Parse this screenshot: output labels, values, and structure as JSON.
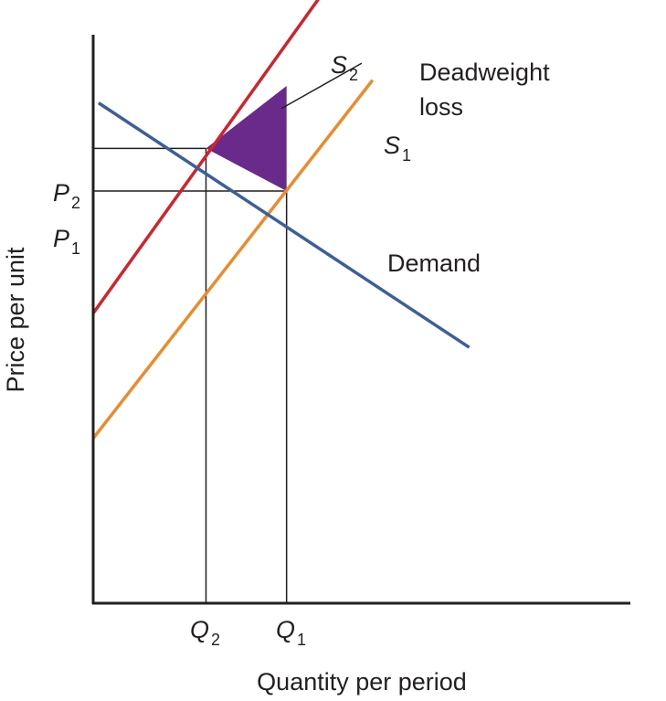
{
  "chart_data": {
    "type": "line",
    "xlabel": "Quantity per period",
    "ylabel": "Price per unit",
    "xlim": [
      0,
      100
    ],
    "ylim": [
      0,
      100
    ],
    "grid": false,
    "series": [
      {
        "name": "S",
        "sub": "1",
        "color": "#ef8a2b",
        "points": [
          [
            0,
            29
          ],
          [
            52,
            92
          ]
        ]
      },
      {
        "name": "S",
        "sub": "2",
        "color": "#d2232a",
        "points": [
          [
            0,
            51
          ],
          [
            44,
            109
          ]
        ]
      },
      {
        "name": "Demand",
        "sub": "",
        "color": "#3a5f9a",
        "points": [
          [
            1,
            88
          ],
          [
            70,
            45
          ]
        ]
      }
    ],
    "equilibria": [
      {
        "name": "original",
        "price_label": "P",
        "price_sub": "1",
        "quantity_label": "Q",
        "quantity_sub": "1",
        "x": 36,
        "y": 72.5
      },
      {
        "name": "new",
        "price_label": "P",
        "price_sub": "2",
        "quantity_label": "Q",
        "quantity_sub": "2",
        "x": 21,
        "y": 80
      }
    ],
    "shaded_region": {
      "name": "deadweight-loss",
      "color": "#6a2a8c",
      "points": [
        [
          21,
          80
        ],
        [
          36,
          72.5
        ],
        [
          36,
          91
        ]
      ]
    },
    "annotations": [
      {
        "name": "deadweight-loss-label",
        "lines": [
          "Deadweight",
          "loss"
        ],
        "x": 61,
        "y": 103,
        "arrow_to": [
          35,
          87
        ]
      },
      {
        "name": "demand-label",
        "text": "Demand",
        "x": 55,
        "y": 70
      }
    ]
  }
}
